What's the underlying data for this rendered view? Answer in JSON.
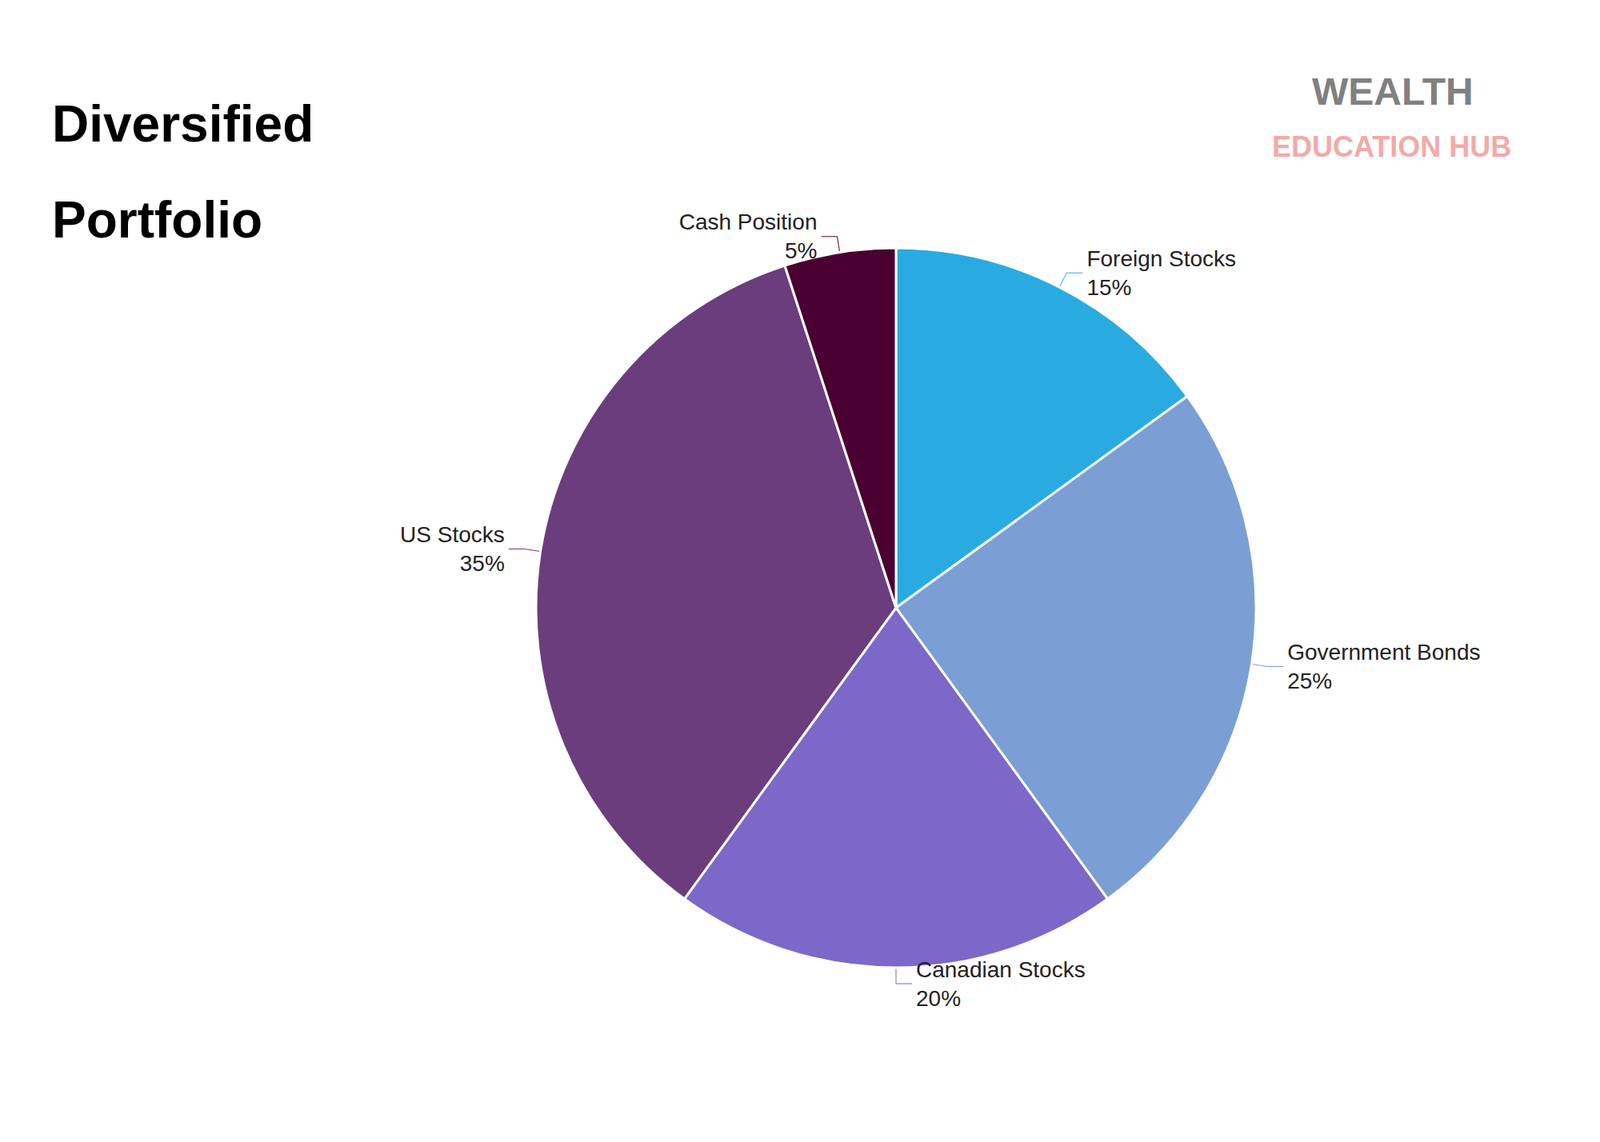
{
  "chart_data": {
    "type": "pie",
    "title": "Diversified\nPortfolio",
    "categories": [
      "Foreign Stocks",
      "Government Bonds",
      "Canadian Stocks",
      "US Stocks",
      "Cash Position"
    ],
    "values": [
      15,
      25,
      20,
      35,
      5
    ],
    "value_labels": [
      "15%",
      "25%",
      "20%",
      "35%",
      "5%"
    ],
    "colors": [
      "#29ABE2",
      "#7B9FD4",
      "#7B68C8",
      "#6B3D7D",
      "#4A0030"
    ],
    "data_labels": true,
    "annotations": [
      {
        "text": "WEALTH",
        "color": "#808080"
      },
      {
        "text": "EDUCATION HUB",
        "color": "#F4A9A8"
      }
    ]
  }
}
